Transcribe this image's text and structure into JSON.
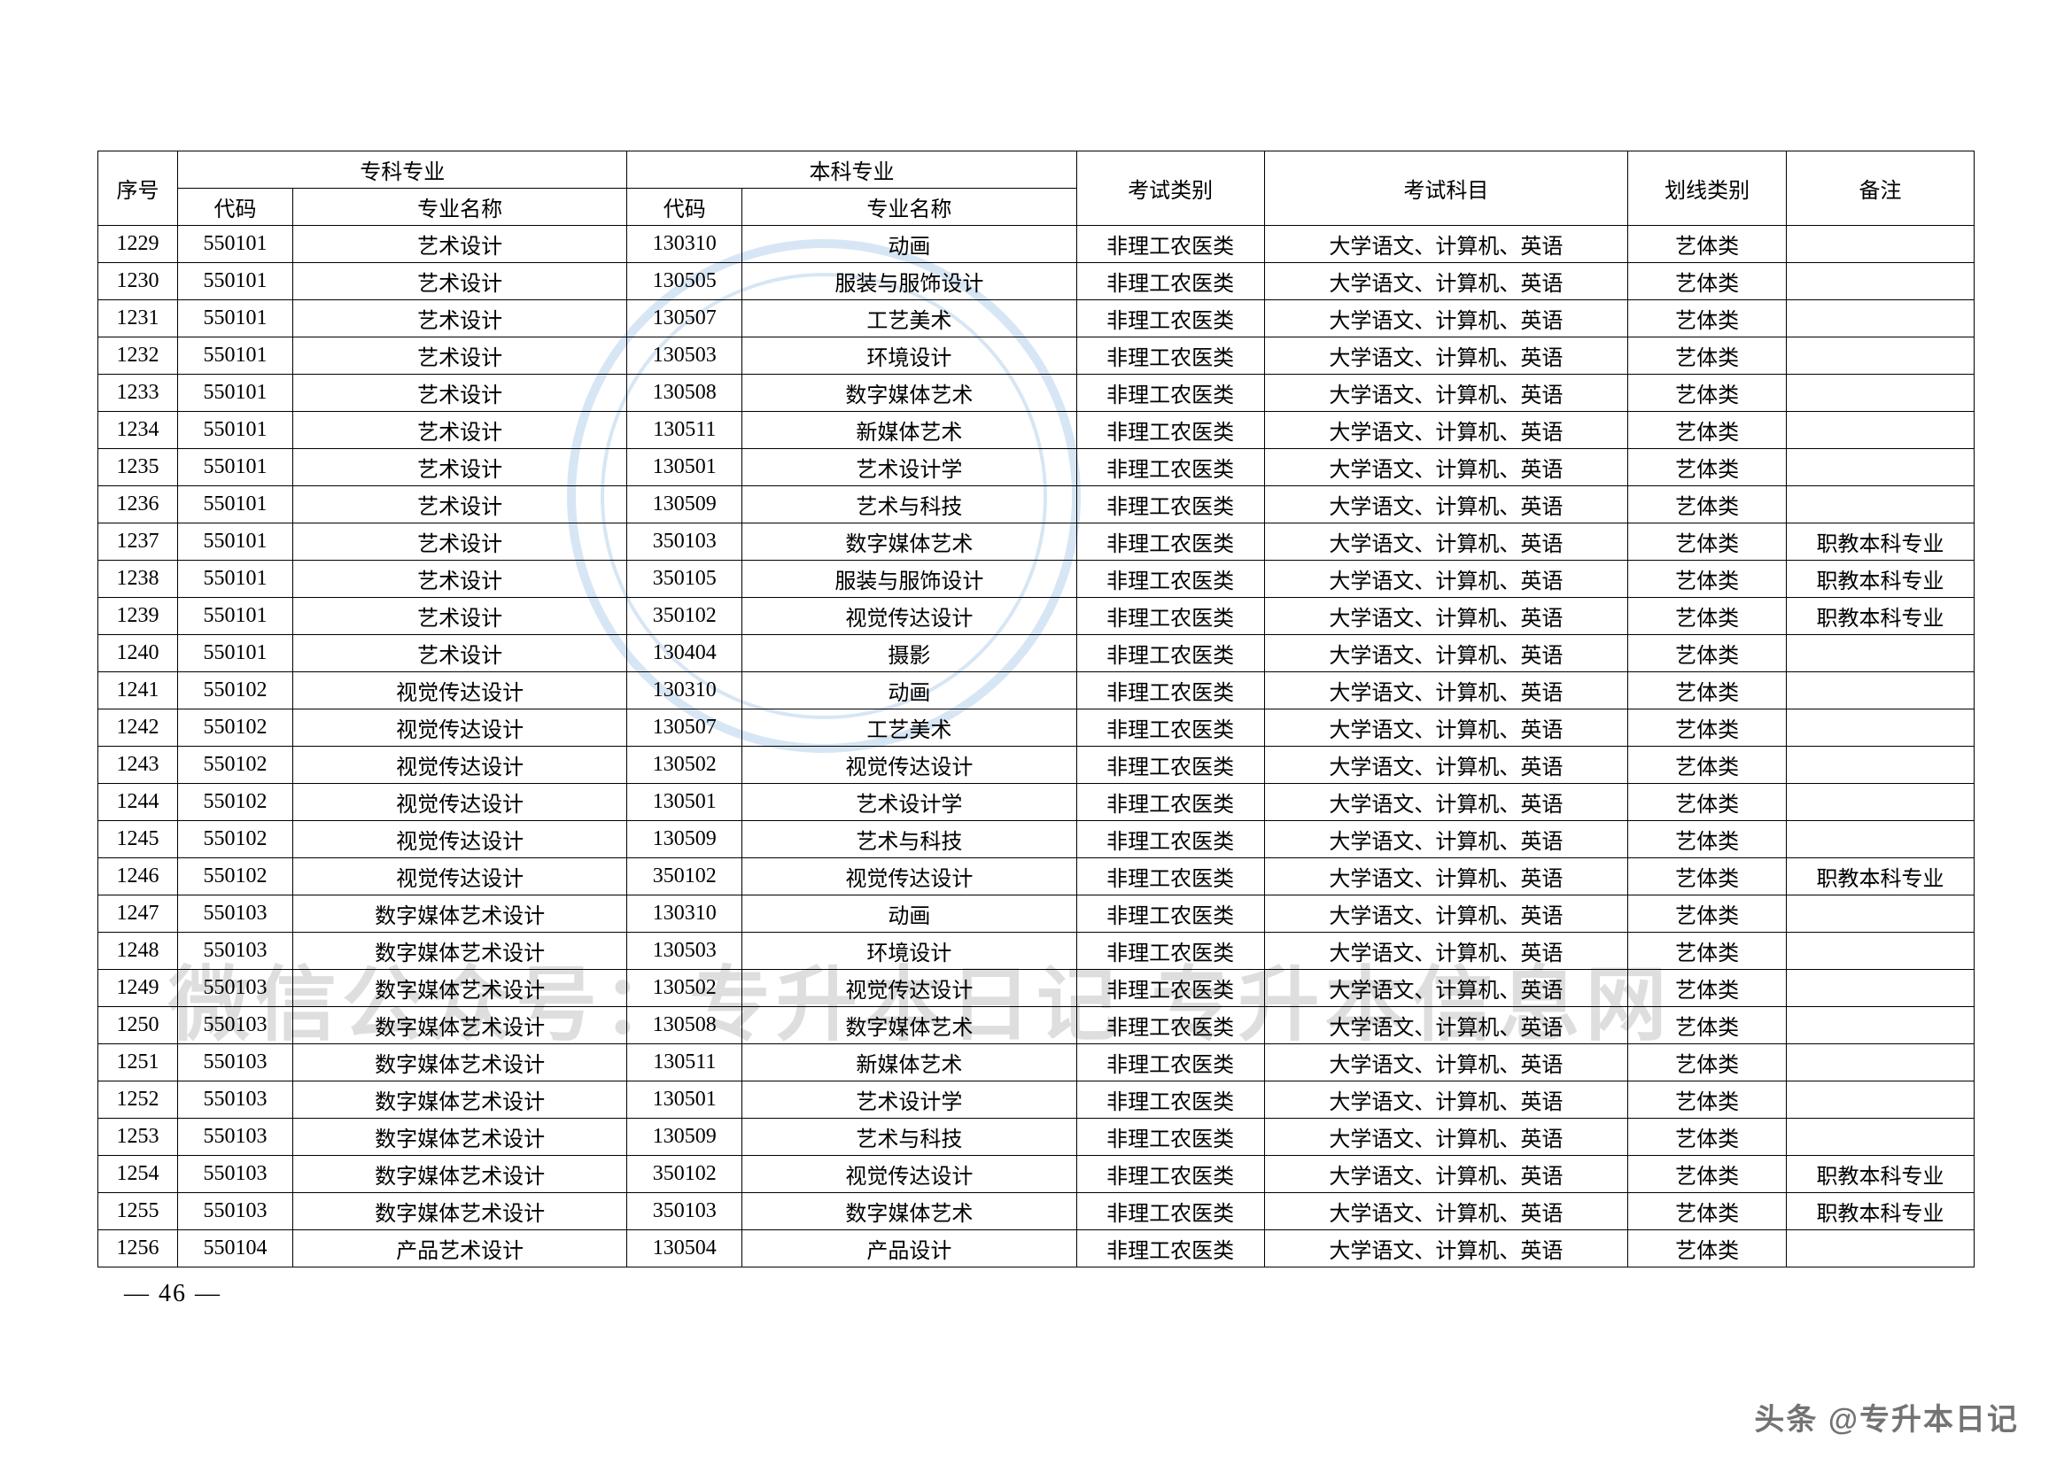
{
  "table": {
    "header": {
      "seq": "序号",
      "zk": "专科专业",
      "bk": "本科专业",
      "exam_cat": "考试类别",
      "exam_subj": "考试科目",
      "line_cat": "划线类别",
      "remark": "备注",
      "code": "代码",
      "name": "专业名称"
    },
    "rows": [
      [
        "1229",
        "550101",
        "艺术设计",
        "130310",
        "动画",
        "非理工农医类",
        "大学语文、计算机、英语",
        "艺体类",
        ""
      ],
      [
        "1230",
        "550101",
        "艺术设计",
        "130505",
        "服装与服饰设计",
        "非理工农医类",
        "大学语文、计算机、英语",
        "艺体类",
        ""
      ],
      [
        "1231",
        "550101",
        "艺术设计",
        "130507",
        "工艺美术",
        "非理工农医类",
        "大学语文、计算机、英语",
        "艺体类",
        ""
      ],
      [
        "1232",
        "550101",
        "艺术设计",
        "130503",
        "环境设计",
        "非理工农医类",
        "大学语文、计算机、英语",
        "艺体类",
        ""
      ],
      [
        "1233",
        "550101",
        "艺术设计",
        "130508",
        "数字媒体艺术",
        "非理工农医类",
        "大学语文、计算机、英语",
        "艺体类",
        ""
      ],
      [
        "1234",
        "550101",
        "艺术设计",
        "130511",
        "新媒体艺术",
        "非理工农医类",
        "大学语文、计算机、英语",
        "艺体类",
        ""
      ],
      [
        "1235",
        "550101",
        "艺术设计",
        "130501",
        "艺术设计学",
        "非理工农医类",
        "大学语文、计算机、英语",
        "艺体类",
        ""
      ],
      [
        "1236",
        "550101",
        "艺术设计",
        "130509",
        "艺术与科技",
        "非理工农医类",
        "大学语文、计算机、英语",
        "艺体类",
        ""
      ],
      [
        "1237",
        "550101",
        "艺术设计",
        "350103",
        "数字媒体艺术",
        "非理工农医类",
        "大学语文、计算机、英语",
        "艺体类",
        "职教本科专业"
      ],
      [
        "1238",
        "550101",
        "艺术设计",
        "350105",
        "服装与服饰设计",
        "非理工农医类",
        "大学语文、计算机、英语",
        "艺体类",
        "职教本科专业"
      ],
      [
        "1239",
        "550101",
        "艺术设计",
        "350102",
        "视觉传达设计",
        "非理工农医类",
        "大学语文、计算机、英语",
        "艺体类",
        "职教本科专业"
      ],
      [
        "1240",
        "550101",
        "艺术设计",
        "130404",
        "摄影",
        "非理工农医类",
        "大学语文、计算机、英语",
        "艺体类",
        ""
      ],
      [
        "1241",
        "550102",
        "视觉传达设计",
        "130310",
        "动画",
        "非理工农医类",
        "大学语文、计算机、英语",
        "艺体类",
        ""
      ],
      [
        "1242",
        "550102",
        "视觉传达设计",
        "130507",
        "工艺美术",
        "非理工农医类",
        "大学语文、计算机、英语",
        "艺体类",
        ""
      ],
      [
        "1243",
        "550102",
        "视觉传达设计",
        "130502",
        "视觉传达设计",
        "非理工农医类",
        "大学语文、计算机、英语",
        "艺体类",
        ""
      ],
      [
        "1244",
        "550102",
        "视觉传达设计",
        "130501",
        "艺术设计学",
        "非理工农医类",
        "大学语文、计算机、英语",
        "艺体类",
        ""
      ],
      [
        "1245",
        "550102",
        "视觉传达设计",
        "130509",
        "艺术与科技",
        "非理工农医类",
        "大学语文、计算机、英语",
        "艺体类",
        ""
      ],
      [
        "1246",
        "550102",
        "视觉传达设计",
        "350102",
        "视觉传达设计",
        "非理工农医类",
        "大学语文、计算机、英语",
        "艺体类",
        "职教本科专业"
      ],
      [
        "1247",
        "550103",
        "数字媒体艺术设计",
        "130310",
        "动画",
        "非理工农医类",
        "大学语文、计算机、英语",
        "艺体类",
        ""
      ],
      [
        "1248",
        "550103",
        "数字媒体艺术设计",
        "130503",
        "环境设计",
        "非理工农医类",
        "大学语文、计算机、英语",
        "艺体类",
        ""
      ],
      [
        "1249",
        "550103",
        "数字媒体艺术设计",
        "130502",
        "视觉传达设计",
        "非理工农医类",
        "大学语文、计算机、英语",
        "艺体类",
        ""
      ],
      [
        "1250",
        "550103",
        "数字媒体艺术设计",
        "130508",
        "数字媒体艺术",
        "非理工农医类",
        "大学语文、计算机、英语",
        "艺体类",
        ""
      ],
      [
        "1251",
        "550103",
        "数字媒体艺术设计",
        "130511",
        "新媒体艺术",
        "非理工农医类",
        "大学语文、计算机、英语",
        "艺体类",
        ""
      ],
      [
        "1252",
        "550103",
        "数字媒体艺术设计",
        "130501",
        "艺术设计学",
        "非理工农医类",
        "大学语文、计算机、英语",
        "艺体类",
        ""
      ],
      [
        "1253",
        "550103",
        "数字媒体艺术设计",
        "130509",
        "艺术与科技",
        "非理工农医类",
        "大学语文、计算机、英语",
        "艺体类",
        ""
      ],
      [
        "1254",
        "550103",
        "数字媒体艺术设计",
        "350102",
        "视觉传达设计",
        "非理工农医类",
        "大学语文、计算机、英语",
        "艺体类",
        "职教本科专业"
      ],
      [
        "1255",
        "550103",
        "数字媒体艺术设计",
        "350103",
        "数字媒体艺术",
        "非理工农医类",
        "大学语文、计算机、英语",
        "艺体类",
        "职教本科专业"
      ],
      [
        "1256",
        "550104",
        "产品艺术设计",
        "130504",
        "产品设计",
        "非理工农医类",
        "大学语文、计算机、英语",
        "艺体类",
        ""
      ]
    ]
  },
  "page_number": "— 46 —",
  "watermark_text": "微信公众号：专升本日记  专升本信息网",
  "attribution": "头条 @专升本日记",
  "style": {
    "border_color": "#000000",
    "font_size_cell": 24,
    "font_size_pagenum": 28,
    "background": "#ffffff",
    "watermark_ring_color": "#a8c9e8"
  }
}
